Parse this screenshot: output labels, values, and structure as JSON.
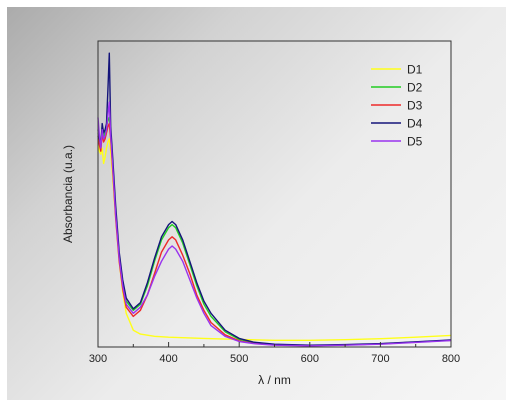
{
  "chart_data": {
    "type": "line",
    "xlabel": "λ / nm",
    "ylabel": "Absorbancia (u.a.)",
    "xlim": [
      300,
      800
    ],
    "ylim": [
      0,
      1.0
    ],
    "xticks": [
      300,
      400,
      500,
      600,
      700,
      800
    ],
    "y_tick_labels_shown": false,
    "grid": false,
    "legend_position": "top-right",
    "series": [
      {
        "name": "D1",
        "color": "#ffff1a",
        "x": [
          300,
          302,
          304,
          306,
          308,
          310,
          312,
          314,
          316,
          318,
          320,
          325,
          330,
          335,
          340,
          350,
          360,
          380,
          400,
          450,
          500,
          550,
          600,
          650,
          700,
          750,
          800
        ],
        "y": [
          0.66,
          0.64,
          0.63,
          0.65,
          0.6,
          0.62,
          0.65,
          0.67,
          0.68,
          0.64,
          0.58,
          0.42,
          0.28,
          0.18,
          0.11,
          0.055,
          0.042,
          0.035,
          0.032,
          0.028,
          0.025,
          0.022,
          0.022,
          0.024,
          0.027,
          0.032,
          0.038
        ]
      },
      {
        "name": "D2",
        "color": "#22cc22",
        "x": [
          300,
          302,
          304,
          306,
          308,
          310,
          312,
          314,
          316,
          318,
          320,
          325,
          330,
          335,
          340,
          350,
          360,
          370,
          380,
          390,
          400,
          405,
          410,
          420,
          430,
          440,
          450,
          460,
          480,
          500,
          520,
          550,
          600,
          650,
          700,
          750,
          800
        ],
        "y": [
          0.7,
          0.68,
          0.66,
          0.72,
          0.69,
          0.7,
          0.72,
          0.74,
          0.75,
          0.7,
          0.63,
          0.44,
          0.3,
          0.21,
          0.15,
          0.12,
          0.14,
          0.2,
          0.28,
          0.35,
          0.39,
          0.4,
          0.39,
          0.34,
          0.27,
          0.2,
          0.14,
          0.1,
          0.05,
          0.025,
          0.015,
          0.008,
          0.005,
          0.007,
          0.01,
          0.016,
          0.022
        ]
      },
      {
        "name": "D3",
        "color": "#ee2a2a",
        "x": [
          300,
          302,
          304,
          306,
          308,
          310,
          312,
          314,
          316,
          318,
          320,
          325,
          330,
          335,
          340,
          350,
          360,
          370,
          380,
          390,
          400,
          405,
          410,
          420,
          430,
          440,
          450,
          460,
          480,
          500,
          520,
          550,
          600,
          650,
          700,
          750,
          800
        ],
        "y": [
          0.69,
          0.66,
          0.64,
          0.7,
          0.67,
          0.68,
          0.7,
          0.72,
          0.73,
          0.68,
          0.61,
          0.42,
          0.28,
          0.19,
          0.13,
          0.1,
          0.12,
          0.17,
          0.24,
          0.31,
          0.35,
          0.36,
          0.35,
          0.3,
          0.24,
          0.17,
          0.12,
          0.08,
          0.04,
          0.02,
          0.012,
          0.007,
          0.005,
          0.007,
          0.01,
          0.016,
          0.022
        ]
      },
      {
        "name": "D4",
        "color": "#14147a",
        "x": [
          300,
          302,
          304,
          306,
          308,
          310,
          312,
          314,
          316,
          318,
          320,
          325,
          330,
          335,
          340,
          350,
          360,
          370,
          380,
          390,
          400,
          405,
          410,
          420,
          430,
          440,
          450,
          460,
          480,
          500,
          520,
          550,
          600,
          650,
          700,
          750,
          800
        ],
        "y": [
          0.71,
          0.68,
          0.66,
          0.73,
          0.7,
          0.71,
          0.73,
          0.84,
          0.96,
          0.72,
          0.65,
          0.46,
          0.31,
          0.22,
          0.16,
          0.125,
          0.145,
          0.21,
          0.29,
          0.36,
          0.4,
          0.41,
          0.4,
          0.35,
          0.28,
          0.21,
          0.15,
          0.11,
          0.055,
          0.028,
          0.016,
          0.009,
          0.006,
          0.008,
          0.011,
          0.017,
          0.023
        ]
      },
      {
        "name": "D5",
        "color": "#9933ee",
        "x": [
          300,
          302,
          304,
          306,
          308,
          310,
          312,
          314,
          316,
          318,
          320,
          325,
          330,
          335,
          340,
          350,
          360,
          370,
          380,
          390,
          400,
          405,
          410,
          420,
          430,
          440,
          450,
          460,
          480,
          500,
          520,
          550,
          600,
          650,
          700,
          750,
          800
        ],
        "y": [
          0.75,
          0.69,
          0.65,
          0.71,
          0.68,
          0.69,
          0.71,
          0.76,
          0.8,
          0.69,
          0.62,
          0.43,
          0.29,
          0.2,
          0.14,
          0.11,
          0.13,
          0.17,
          0.23,
          0.28,
          0.32,
          0.33,
          0.32,
          0.28,
          0.22,
          0.16,
          0.11,
          0.07,
          0.035,
          0.018,
          0.011,
          0.006,
          0.004,
          0.006,
          0.009,
          0.015,
          0.021
        ]
      }
    ]
  }
}
